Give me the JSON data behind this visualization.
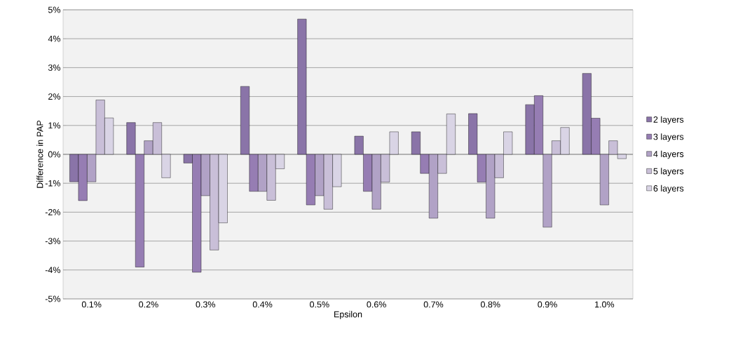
{
  "chart_data": {
    "type": "bar",
    "xlabel": "Epsilon",
    "ylabel": "Difference in PAP",
    "categories": [
      "0.1%",
      "0.2%",
      "0.3%",
      "0.4%",
      "0.5%",
      "0.6%",
      "0.7%",
      "0.8%",
      "0.9%",
      "1.0%"
    ],
    "series": [
      {
        "name": "2 layers",
        "color": "#8a74a8",
        "values": [
          -0.95,
          1.1,
          -0.3,
          2.35,
          4.68,
          0.63,
          0.78,
          1.41,
          1.72,
          2.8
        ]
      },
      {
        "name": "3 layers",
        "color": "#967db3",
        "values": [
          -1.6,
          -3.9,
          -4.08,
          -1.28,
          -1.75,
          -1.28,
          -0.66,
          -0.96,
          2.03,
          1.25
        ]
      },
      {
        "name": "4 layers",
        "color": "#b1a2c6",
        "values": [
          -0.95,
          0.47,
          -1.43,
          -1.28,
          -1.43,
          -1.9,
          -2.21,
          -2.21,
          -2.52,
          -1.75
        ]
      },
      {
        "name": "5 layers",
        "color": "#c9bfd8",
        "values": [
          1.88,
          1.1,
          -3.31,
          -1.59,
          -1.9,
          -0.96,
          -0.66,
          -0.81,
          0.47,
          0.47
        ]
      },
      {
        "name": "6 layers",
        "color": "#d9d4e5",
        "values": [
          1.26,
          -0.81,
          -2.37,
          -0.5,
          -1.12,
          0.78,
          1.4,
          0.78,
          0.93,
          -0.15
        ]
      }
    ],
    "ylim": [
      -5,
      5
    ],
    "yticks": [
      {
        "value": -5,
        "label": "-5%"
      },
      {
        "value": -4,
        "label": "-4%"
      },
      {
        "value": -3,
        "label": "-3%"
      },
      {
        "value": -2,
        "label": "-2%"
      },
      {
        "value": -1,
        "label": "-1%"
      },
      {
        "value": 0,
        "label": "0%"
      },
      {
        "value": 1,
        "label": "1%"
      },
      {
        "value": 2,
        "label": "2%"
      },
      {
        "value": 3,
        "label": "3%"
      },
      {
        "value": 4,
        "label": "4%"
      },
      {
        "value": 5,
        "label": "5%"
      }
    ],
    "grid": "y",
    "legend": "right"
  }
}
